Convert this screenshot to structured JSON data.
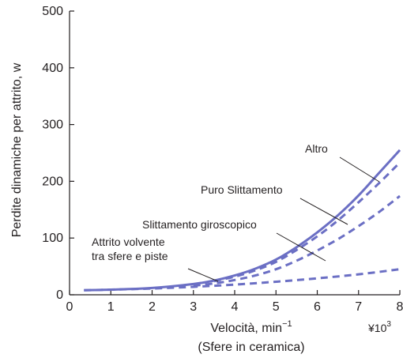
{
  "chart_data": {
    "type": "line",
    "ylabel": "Perdite dinamiche per attrito, w",
    "xlabel_line1": "Velocità, min",
    "xlabel_sup": "−1",
    "xlabel_line2": "(Sfere in ceramica)",
    "x_multiplier_base": "¥10",
    "x_multiplier_exp": "3",
    "xlim": [
      0,
      8
    ],
    "ylim": [
      0,
      500
    ],
    "x_ticks": [
      "0",
      "1",
      "2",
      "3",
      "4",
      "5",
      "6",
      "7",
      "8"
    ],
    "y_ticks": [
      "0",
      "100",
      "200",
      "300",
      "400",
      "500"
    ],
    "grid": false,
    "series": [
      {
        "name": "Altro",
        "style": "solid",
        "color": "#6b6fc4",
        "x": [
          0.35,
          1,
          2,
          3,
          3.5,
          4,
          4.5,
          5,
          5.5,
          6,
          6.5,
          7,
          7.5,
          8
        ],
        "y": [
          8,
          9,
          12,
          19,
          25,
          34,
          46,
          62,
          84,
          110,
          140,
          175,
          215,
          255
        ]
      },
      {
        "name": "Puro Slittamento",
        "style": "dashed",
        "color": "#6b6fc4",
        "x": [
          3.5,
          4,
          4.5,
          5,
          5.5,
          6,
          6.5,
          7,
          7.5,
          8
        ],
        "y": [
          24,
          32,
          43,
          58,
          79,
          103,
          131,
          163,
          197,
          233
        ]
      },
      {
        "name": "Slittamento giroscopico",
        "style": "dashed",
        "color": "#6b6fc4",
        "x": [
          3,
          3.5,
          4,
          4.5,
          5,
          5.5,
          6,
          6.5,
          7,
          7.5,
          8
        ],
        "y": [
          16,
          20,
          26,
          34,
          45,
          60,
          78,
          98,
          121,
          146,
          174
        ]
      },
      {
        "name": "Attrito volvente\ntra sfere e piste",
        "style": "dashed",
        "color": "#6b6fc4",
        "x": [
          0.35,
          1,
          2,
          3,
          4,
          5,
          6,
          7,
          8
        ],
        "y": [
          8,
          9,
          11,
          14,
          18,
          23,
          29,
          36,
          45
        ]
      }
    ],
    "annotations": [
      {
        "text": "Altro",
        "series": 0
      },
      {
        "text": "Puro Slittamento",
        "series": 1
      },
      {
        "text": "Slittamento giroscopico",
        "series": 2
      },
      {
        "text_lines": [
          "Attrito volvente",
          "tra sfere e piste"
        ],
        "series": 3
      }
    ]
  }
}
